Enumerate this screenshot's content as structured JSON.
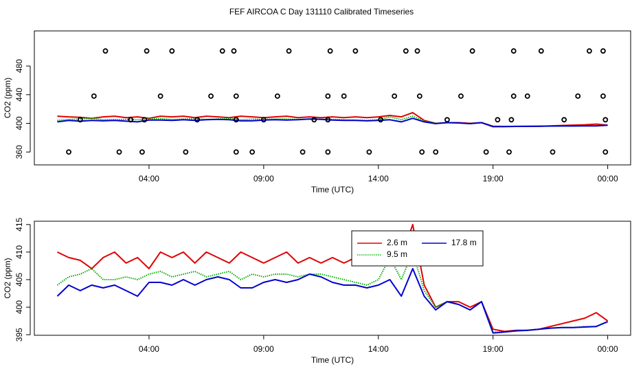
{
  "title": "FEF AIRCOA C  Day 131110  Calibrated Timeseries",
  "chart_data": [
    {
      "type": "line",
      "xlabel": "Time (UTC)",
      "ylabel": "CO2 (ppm)",
      "xlim": [
        -1,
        25
      ],
      "ylim": [
        342,
        529
      ],
      "xticks": [
        {
          "value": 4,
          "label": "04:00"
        },
        {
          "value": 9,
          "label": "09:00"
        },
        {
          "value": 14,
          "label": "14:00"
        },
        {
          "value": 19,
          "label": "19:00"
        },
        {
          "value": 24,
          "label": "00:00"
        }
      ],
      "yticks": [
        360,
        400,
        440,
        480
      ],
      "x": [
        0,
        0.5,
        1,
        1.5,
        2,
        2.5,
        3,
        3.5,
        4,
        4.5,
        5,
        5.5,
        6,
        6.5,
        7,
        7.5,
        8,
        8.5,
        9,
        9.5,
        10,
        10.5,
        11,
        11.5,
        12,
        12.5,
        13,
        13.5,
        14,
        14.5,
        15,
        15.5,
        16,
        16.5,
        17,
        17.5,
        18,
        18.5,
        19,
        19.5,
        20,
        20.5,
        21,
        21.5,
        22,
        22.5,
        23,
        23.5,
        24
      ],
      "series": [
        {
          "color": "#e00000",
          "values": [
            410,
            409,
            408.5,
            407,
            409,
            410,
            408,
            409,
            407,
            410,
            409,
            410,
            408,
            410,
            409,
            408,
            410,
            409,
            408,
            409,
            410,
            408,
            409,
            408,
            409,
            408,
            409,
            408,
            409,
            411,
            409,
            415,
            404,
            400,
            401,
            401,
            400,
            401,
            396,
            395.6,
            395.8,
            395.8,
            396,
            396.5,
            397,
            397.5,
            398,
            399,
            397.5
          ]
        },
        {
          "color": "#00b000",
          "dash": "dotted",
          "values": [
            404,
            405.5,
            406,
            407,
            405,
            405,
            405.5,
            405,
            406,
            406.5,
            405.5,
            406,
            406.5,
            405.5,
            406,
            406.5,
            405,
            406,
            405.5,
            406,
            406,
            405.5,
            406,
            406,
            405.5,
            405,
            404.5,
            404,
            405,
            409,
            405,
            410,
            403,
            400,
            401,
            400.5,
            399.5,
            401,
            395.5,
            395.5,
            395.7,
            395.8,
            396,
            396.2,
            396.3,
            396.3,
            396.5,
            396.5,
            397.3
          ]
        },
        {
          "color": "#0000d0",
          "values": [
            402,
            404,
            403,
            404,
            403.5,
            404,
            403,
            402,
            404.5,
            404.5,
            404,
            405,
            404,
            405,
            405.5,
            405,
            403.5,
            403.5,
            404.5,
            405,
            404.5,
            405,
            406,
            405.5,
            404.5,
            404,
            404,
            403.5,
            404,
            405,
            402,
            407,
            402,
            399.5,
            401,
            400.5,
            399.5,
            401,
            395.3,
            395.5,
            395.7,
            395.8,
            396,
            396.2,
            396.3,
            396.3,
            396.4,
            396.5,
            397.4
          ]
        }
      ],
      "points": {
        "color": "#000000",
        "x": [
          2.1,
          3.9,
          5.0,
          7.2,
          7.7,
          10.1,
          11.9,
          13.0,
          15.2,
          15.7,
          18.1,
          19.9,
          21.1,
          23.2,
          23.8,
          1.6,
          4.5,
          6.7,
          7.8,
          9.6,
          11.8,
          12.5,
          14.7,
          15.8,
          17.6,
          19.9,
          20.5,
          22.7,
          23.8,
          0.5,
          2.7,
          3.7,
          5.6,
          7.8,
          8.5,
          10.7,
          11.8,
          13.6,
          15.9,
          16.5,
          18.7,
          19.7,
          21.6,
          23.9,
          1.0,
          3.2,
          3.8,
          6.1,
          7.8,
          9.0,
          11.2,
          11.8,
          14.1,
          17.0,
          19.2,
          19.8,
          22.1,
          23.9
        ],
        "y": [
          501,
          501,
          501,
          501,
          501,
          501,
          501,
          501,
          501,
          501,
          501,
          501,
          501,
          501,
          501,
          438,
          438,
          438,
          438,
          438,
          438,
          438,
          438,
          438,
          438,
          438,
          438,
          438,
          438,
          360,
          360,
          360,
          360,
          360,
          360,
          360,
          360,
          360,
          360,
          360,
          360,
          360,
          360,
          360,
          405,
          405,
          405,
          405,
          405,
          405,
          405,
          405,
          405,
          405,
          405,
          405,
          405,
          405
        ]
      }
    },
    {
      "type": "line",
      "xlabel": "Time (UTC)",
      "ylabel": "CO2 (ppm)",
      "xlim": [
        -1,
        25
      ],
      "ylim": [
        394.9,
        415.6
      ],
      "xticks": [
        {
          "value": 4,
          "label": "04:00"
        },
        {
          "value": 9,
          "label": "09:00"
        },
        {
          "value": 14,
          "label": "14:00"
        },
        {
          "value": 19,
          "label": "19:00"
        },
        {
          "value": 24,
          "label": "00:00"
        }
      ],
      "yticks": [
        395,
        400,
        405,
        410,
        415
      ],
      "legend": "top-center",
      "x": [
        0,
        0.5,
        1,
        1.5,
        2,
        2.5,
        3,
        3.5,
        4,
        4.5,
        5,
        5.5,
        6,
        6.5,
        7,
        7.5,
        8,
        8.5,
        9,
        9.5,
        10,
        10.5,
        11,
        11.5,
        12,
        12.5,
        13,
        13.5,
        14,
        14.5,
        15,
        15.5,
        16,
        16.5,
        17,
        17.5,
        18,
        18.5,
        19,
        19.5,
        20,
        20.5,
        21,
        21.5,
        22,
        22.5,
        23,
        23.5,
        24
      ],
      "series": [
        {
          "name": "2.6 m",
          "color": "#e00000",
          "values": [
            410,
            409,
            408.5,
            407,
            409,
            410,
            408,
            409,
            407,
            410,
            409,
            410,
            408,
            410,
            409,
            408,
            410,
            409,
            408,
            409,
            410,
            408,
            409,
            408,
            409,
            408,
            409,
            408,
            409,
            411,
            409,
            415,
            404,
            400,
            401,
            401,
            400,
            401,
            396,
            395.6,
            395.8,
            395.8,
            396,
            396.5,
            397,
            397.5,
            398,
            399,
            397.5
          ]
        },
        {
          "name": "9.5 m",
          "color": "#00b000",
          "dash": "dotted",
          "values": [
            404,
            405.5,
            406,
            407,
            405,
            405,
            405.5,
            405,
            406,
            406.5,
            405.5,
            406,
            406.5,
            405.5,
            406,
            406.5,
            405,
            406,
            405.5,
            406,
            406,
            405.5,
            406,
            406,
            405.5,
            405,
            404.5,
            404,
            405,
            409,
            405,
            410,
            403,
            400,
            401,
            400.5,
            399.5,
            401,
            395.5,
            395.5,
            395.7,
            395.8,
            396,
            396.2,
            396.3,
            396.3,
            396.5,
            396.5,
            397.3
          ]
        },
        {
          "name": "17.8 m",
          "color": "#0000d0",
          "values": [
            402,
            404,
            403,
            404,
            403.5,
            404,
            403,
            402,
            404.5,
            404.5,
            404,
            405,
            404,
            405,
            405.5,
            405,
            403.5,
            403.5,
            404.5,
            405,
            404.5,
            405,
            406,
            405.5,
            404.5,
            404,
            404,
            403.5,
            404,
            405,
            402,
            407,
            402,
            399.5,
            401,
            400.5,
            399.5,
            401,
            395.3,
            395.5,
            395.7,
            395.8,
            396,
            396.2,
            396.3,
            396.3,
            396.4,
            396.5,
            397.4
          ]
        }
      ]
    }
  ]
}
